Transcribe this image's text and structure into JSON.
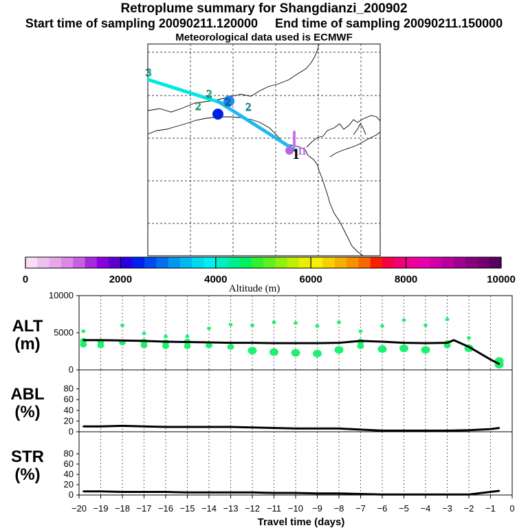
{
  "title": "Retroplume summary for Shangdianzi_200902",
  "subtitle_start": "Start time of sampling 20090211.120000",
  "subtitle_end": "End time of sampling 20090211.150000",
  "met_line": "Meteorological data used is ECMWF",
  "colorbar": {
    "label": "Altitude (m)",
    "ticks": [
      "0",
      "2000",
      "4000",
      "6000",
      "8000",
      "10000"
    ],
    "range": [
      0,
      10000
    ],
    "colors": [
      "#f8dcf8",
      "#f0c0f0",
      "#e8a8e8",
      "#dc88e8",
      "#c860e0",
      "#a828e0",
      "#8800e0",
      "#5c00d0",
      "#2800e0",
      "#0020f0",
      "#0048f0",
      "#0070f0",
      "#0098f0",
      "#00b8f0",
      "#00d8f0",
      "#00f0f0",
      "#00f0c0",
      "#00f090",
      "#00f060",
      "#30f030",
      "#60f020",
      "#90f010",
      "#c0f000",
      "#e8f000",
      "#f8f000",
      "#f8d000",
      "#f8b000",
      "#f89000",
      "#f86800",
      "#f82000",
      "#f80048",
      "#f00078",
      "#f00098",
      "#e800b0",
      "#d000a8",
      "#b8009c",
      "#a00090",
      "#880080",
      "#700070",
      "#580060"
    ]
  },
  "map": {
    "markers": [
      {
        "label": "3",
        "color": "#00f0d0"
      },
      {
        "label": "2",
        "color": "#00f0a0"
      },
      {
        "label": "2",
        "color": "#00f0b0"
      },
      {
        "label": "2",
        "color": "#0088f0"
      },
      {
        "label": "2",
        "color": "#00c8f0"
      },
      {
        "label": "1",
        "color": "#c070e0"
      },
      {
        "label": "1",
        "color": "#c070e0"
      },
      {
        "label": "1",
        "color": "#000000"
      }
    ]
  },
  "chart_data": [
    {
      "type": "line",
      "panel": "ALT",
      "ylabel": "ALT\n(m)",
      "ylabel_line1": "ALT",
      "ylabel_line2": "(m)",
      "ylim": [
        0,
        10000
      ],
      "yticks": [
        "10000",
        "5000",
        "0"
      ],
      "x": [
        -19.8,
        -19,
        -18,
        -17,
        -16,
        -15,
        -14,
        -13,
        -12,
        -11,
        -10,
        -9,
        -8,
        -7,
        -6,
        -5,
        -4,
        -3,
        -2.7,
        -2,
        -1,
        -0.6
      ],
      "values": [
        4000,
        4000,
        3950,
        3900,
        3800,
        3750,
        3700,
        3650,
        3650,
        3600,
        3600,
        3600,
        3650,
        3900,
        3800,
        3650,
        3600,
        3650,
        4000,
        3100,
        1400,
        800
      ],
      "scatter": {
        "x": [
          -19.8,
          -19.8,
          -19.8,
          -19,
          -19,
          -18,
          -18,
          -17,
          -17,
          -17,
          -16,
          -16,
          -16,
          -15,
          -15,
          -15,
          -14,
          -14,
          -13,
          -13,
          -12,
          -12,
          -11,
          -11,
          -10,
          -10,
          -9,
          -9,
          -8,
          -8,
          -7,
          -7,
          -7,
          -6,
          -6,
          -5,
          -5,
          -4,
          -4,
          -3,
          -3,
          -3,
          -2,
          -2,
          -0.6,
          -0.6
        ],
        "y": [
          3400,
          3900,
          5200,
          3300,
          3800,
          3700,
          6000,
          3300,
          3800,
          4900,
          3200,
          3700,
          4500,
          3200,
          3800,
          4500,
          3300,
          5600,
          3100,
          6100,
          2600,
          6000,
          2400,
          6400,
          2300,
          6300,
          2200,
          5900,
          2700,
          6400,
          3200,
          3800,
          5200,
          2800,
          5900,
          2900,
          6700,
          2700,
          6000,
          3300,
          3600,
          6800,
          2900,
          4300,
          700,
          1200
        ]
      },
      "xlim": [
        -20,
        0
      ]
    },
    {
      "type": "line",
      "panel": "ABL",
      "ylabel_line1": "ABL",
      "ylabel_line2": "(%)",
      "ylim": [
        0,
        100
      ],
      "yticks": [
        "80",
        "60",
        "40",
        "20",
        "0"
      ],
      "x": [
        -19.8,
        -19,
        -18,
        -17,
        -16,
        -15,
        -14,
        -13,
        -12,
        -11,
        -10,
        -9,
        -8,
        -7,
        -6,
        -5,
        -4,
        -3,
        -2,
        -1,
        -0.6
      ],
      "values": [
        10,
        10,
        11,
        10,
        9,
        9,
        9,
        9,
        8,
        7,
        6,
        6,
        6,
        4,
        2,
        2,
        2,
        2,
        3,
        5,
        7
      ],
      "xlim": [
        -20,
        0
      ]
    },
    {
      "type": "line",
      "panel": "STR",
      "ylabel_line1": "STR",
      "ylabel_line2": "(%)",
      "ylim": [
        0,
        100
      ],
      "yticks": [
        "80",
        "60",
        "40",
        "20",
        "0"
      ],
      "x": [
        -19.8,
        -19,
        -18,
        -17,
        -16,
        -15,
        -14,
        -13,
        -12,
        -11,
        -10,
        -9,
        -8,
        -7,
        -6,
        -5,
        -4,
        -3,
        -2,
        -1,
        -0.6
      ],
      "values": [
        7,
        7,
        6,
        6,
        6,
        5,
        5,
        5,
        5,
        4,
        4,
        3,
        3,
        2,
        1,
        1,
        1,
        1,
        1,
        6,
        8
      ],
      "xlim": [
        -20,
        0
      ]
    }
  ],
  "xaxis": {
    "label": "Travel time (days)",
    "ticks": [
      "−20",
      "−19",
      "−18",
      "−17",
      "−16",
      "−15",
      "−14",
      "−13",
      "−12",
      "−11",
      "−10",
      "−9",
      "−8",
      "−7",
      "−6",
      "−5",
      "−4",
      "−3",
      "−2",
      "−1",
      "0"
    ]
  }
}
